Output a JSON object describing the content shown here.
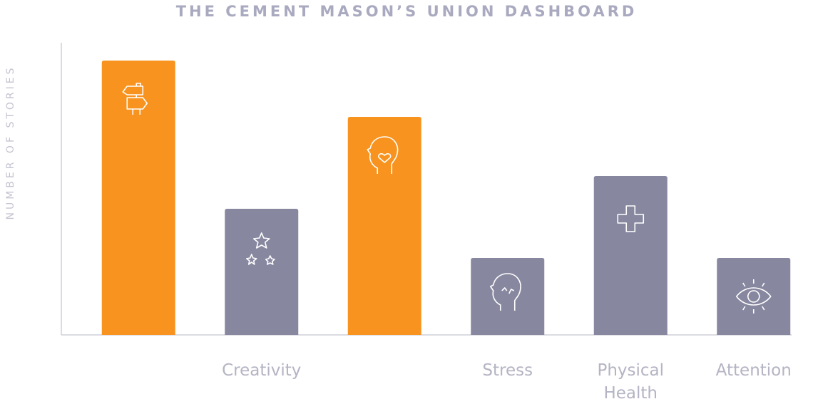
{
  "chart_data": {
    "type": "bar",
    "title": "THE CEMENT MASON’S UNION DASHBOARD",
    "y_label": "NUMBER OF STORIES",
    "categories": [
      null,
      "Creativity",
      null,
      "Stress",
      "Physical Health",
      "Attention"
    ],
    "values": [
      385,
      177,
      306,
      108,
      223,
      108
    ],
    "colors": [
      "#f7931e",
      "#8787a0",
      "#f7931e",
      "#8787a0",
      "#8787a0",
      "#8787a0"
    ],
    "ylim": [
      0,
      400
    ]
  }
}
